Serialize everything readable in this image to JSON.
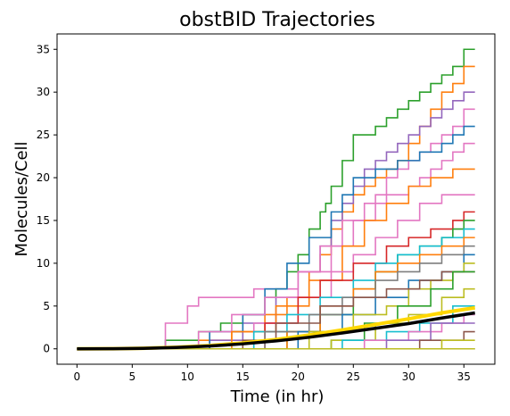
{
  "chart_data": {
    "type": "line",
    "title": "obstBID Trajectories",
    "xlabel": "Time (in hr)",
    "ylabel": "Molecules/Cell",
    "xlim": [
      -1.8,
      37.8
    ],
    "ylim": [
      -1.8,
      36.8
    ],
    "xticks": [
      0,
      5,
      10,
      15,
      20,
      25,
      30,
      35
    ],
    "yticks": [
      0,
      5,
      10,
      15,
      20,
      25,
      30,
      35
    ],
    "grid": false,
    "legend": "none",
    "series": [
      {
        "color": "#2ca02c",
        "style": "step",
        "x": [
          0,
          5,
          8,
          11,
          13,
          15,
          17,
          18,
          19,
          20,
          21,
          22,
          22.5,
          23,
          24,
          25,
          26,
          27,
          28,
          29,
          30,
          31,
          32,
          33,
          34,
          35,
          36
        ],
        "y": [
          0,
          0,
          1,
          2,
          3,
          4,
          6,
          7,
          9,
          11,
          14,
          16,
          17,
          19,
          22,
          25,
          25,
          26,
          27,
          28,
          29,
          30,
          31,
          32,
          33,
          35,
          35
        ]
      },
      {
        "color": "#ff7f0e",
        "style": "step",
        "x": [
          0,
          7,
          11,
          14,
          17,
          19,
          21,
          22,
          23,
          24,
          25,
          26,
          27,
          28,
          29,
          30,
          31,
          32,
          33,
          34,
          35,
          36
        ],
        "y": [
          0,
          0,
          1,
          2,
          4,
          6,
          9,
          11,
          14,
          16,
          18,
          19,
          20,
          21,
          22,
          24,
          26,
          28,
          30,
          31,
          33,
          33
        ]
      },
      {
        "color": "#9467bd",
        "style": "step",
        "x": [
          0,
          8,
          12,
          15,
          18,
          20,
          22,
          23,
          24,
          25,
          26,
          27,
          28,
          29,
          30,
          31,
          32,
          33,
          34,
          35,
          36
        ],
        "y": [
          0,
          0,
          1,
          3,
          6,
          9,
          12,
          15,
          17,
          19,
          21,
          22,
          23,
          24,
          25,
          26,
          27,
          28,
          29,
          30,
          30
        ]
      },
      {
        "color": "#e377c2",
        "style": "step",
        "x": [
          0,
          5,
          8,
          10,
          11,
          16,
          20,
          23,
          25,
          27,
          28,
          29,
          30,
          31,
          32,
          33,
          34,
          35,
          36
        ],
        "y": [
          0,
          0,
          3,
          5,
          6,
          7,
          9,
          12,
          15,
          18,
          20,
          21,
          22,
          23,
          24,
          25,
          26,
          28,
          28
        ]
      },
      {
        "color": "#1f77b4",
        "style": "step",
        "x": [
          0,
          9,
          12,
          15,
          17,
          19,
          21,
          23,
          24,
          25,
          27,
          29,
          31,
          33,
          34,
          35,
          36
        ],
        "y": [
          0,
          0,
          2,
          4,
          7,
          10,
          13,
          16,
          18,
          20,
          21,
          22,
          23,
          24,
          25,
          26,
          26
        ]
      },
      {
        "color": "#e377c2",
        "style": "step",
        "x": [
          0,
          8,
          11,
          14,
          17,
          20,
          22,
          24,
          26,
          28,
          30,
          31,
          32,
          33,
          34,
          35,
          36
        ],
        "y": [
          0,
          0,
          2,
          4,
          6,
          9,
          12,
          15,
          17,
          18,
          19,
          20,
          21,
          22,
          23,
          24,
          24
        ]
      },
      {
        "color": "#ff7f0e",
        "style": "step",
        "x": [
          0,
          10,
          14,
          18,
          21,
          24,
          26,
          28,
          30,
          32,
          34,
          36
        ],
        "y": [
          0,
          0,
          2,
          5,
          8,
          12,
          15,
          17,
          19,
          20,
          21,
          21
        ]
      },
      {
        "color": "#e377c2",
        "style": "step",
        "x": [
          0,
          11,
          16,
          20,
          23,
          25,
          27,
          29,
          31,
          33,
          35,
          36
        ],
        "y": [
          0,
          0,
          3,
          6,
          9,
          11,
          13,
          15,
          17,
          18,
          18,
          18
        ]
      },
      {
        "color": "#d62728",
        "style": "step",
        "x": [
          0,
          12,
          17,
          20,
          22,
          25,
          28,
          30,
          32,
          34,
          35,
          36
        ],
        "y": [
          0,
          0,
          3,
          6,
          8,
          10,
          12,
          13,
          14,
          15,
          16,
          16
        ]
      },
      {
        "color": "#2ca02c",
        "style": "step",
        "x": [
          0,
          14,
          19,
          22,
          25,
          27,
          29,
          31,
          33,
          34,
          35,
          36
        ],
        "y": [
          0,
          0,
          2,
          4,
          7,
          9,
          11,
          12,
          13,
          14,
          15,
          15
        ]
      },
      {
        "color": "#17becf",
        "style": "step",
        "x": [
          0,
          12,
          16,
          19,
          22,
          25,
          27,
          29,
          31,
          33,
          35,
          36
        ],
        "y": [
          0,
          0,
          2,
          4,
          6,
          8,
          10,
          11,
          12,
          13,
          14,
          14
        ]
      },
      {
        "color": "#ff7f0e",
        "style": "step",
        "x": [
          0,
          15,
          19,
          22,
          25,
          27,
          29,
          31,
          33,
          35,
          36
        ],
        "y": [
          0,
          0,
          2,
          5,
          7,
          9,
          10,
          11,
          12,
          13,
          13
        ]
      },
      {
        "color": "#7f7f7f",
        "style": "step",
        "x": [
          0,
          13,
          17,
          21,
          24,
          27,
          29,
          31,
          33,
          35,
          36
        ],
        "y": [
          0,
          0,
          2,
          4,
          6,
          8,
          9,
          10,
          11,
          12,
          12
        ]
      },
      {
        "color": "#1f77b4",
        "style": "step",
        "x": [
          0,
          16,
          20,
          24,
          27,
          30,
          33,
          35,
          36
        ],
        "y": [
          0,
          0,
          2,
          4,
          6,
          8,
          9,
          11,
          11
        ]
      },
      {
        "color": "#bcbd22",
        "style": "step",
        "x": [
          0,
          17,
          21,
          25,
          28,
          30,
          32,
          34,
          35,
          36
        ],
        "y": [
          0,
          0,
          2,
          4,
          5,
          7,
          8,
          9,
          10,
          10
        ]
      },
      {
        "color": "#8c564b",
        "style": "step",
        "x": [
          0,
          11,
          15,
          18,
          22,
          25,
          28,
          31,
          33,
          36
        ],
        "y": [
          0,
          0,
          1,
          3,
          5,
          6,
          7,
          8,
          9,
          9
        ]
      },
      {
        "color": "#2ca02c",
        "style": "step",
        "x": [
          0,
          18,
          23,
          26,
          29,
          32,
          34,
          36
        ],
        "y": [
          0,
          0,
          1,
          3,
          5,
          7,
          9,
          9
        ]
      },
      {
        "color": "#bcbd22",
        "style": "step",
        "x": [
          0,
          19,
          23,
          27,
          30,
          33,
          35,
          36
        ],
        "y": [
          0,
          0,
          1,
          3,
          4,
          6,
          7,
          7
        ]
      },
      {
        "color": "#17becf",
        "style": "step",
        "x": [
          0,
          20,
          24,
          28,
          31,
          34,
          36
        ],
        "y": [
          0,
          0,
          1,
          2,
          3,
          5,
          5
        ]
      },
      {
        "color": "#e377c2",
        "style": "step",
        "x": [
          0,
          22,
          26,
          30,
          33,
          35,
          36
        ],
        "y": [
          0,
          0,
          1,
          2,
          3,
          4,
          4
        ]
      },
      {
        "color": "#9467bd",
        "style": "step",
        "x": [
          0,
          23,
          28,
          32,
          36
        ],
        "y": [
          0,
          0,
          1,
          3,
          3
        ]
      },
      {
        "color": "#8c564b",
        "style": "step",
        "x": [
          0,
          26,
          31,
          35,
          36
        ],
        "y": [
          0,
          0,
          1,
          2,
          2
        ]
      },
      {
        "color": "#bcbd22",
        "style": "step",
        "x": [
          0,
          28,
          33,
          36
        ],
        "y": [
          0,
          0,
          1,
          1
        ]
      },
      {
        "color": "#7f7f7f",
        "style": "step",
        "x": [
          0,
          36
        ],
        "y": [
          0,
          0
        ]
      },
      {
        "color": "#bcbd22",
        "style": "step",
        "x": [
          0,
          36
        ],
        "y": [
          0,
          0
        ]
      },
      {
        "color": "#ffd700",
        "style": "line",
        "width": 4,
        "x": [
          0,
          3,
          6,
          9,
          12,
          15,
          18,
          21,
          24,
          27,
          30,
          33,
          36
        ],
        "y": [
          0,
          0.01,
          0.06,
          0.18,
          0.38,
          0.68,
          1.08,
          1.6,
          2.2,
          2.85,
          3.5,
          4.2,
          4.8
        ]
      },
      {
        "color": "#000000",
        "style": "line",
        "width": 3.5,
        "x": [
          0,
          3,
          6,
          9,
          12,
          15,
          18,
          21,
          24,
          27,
          30,
          33,
          36
        ],
        "y": [
          0,
          0.01,
          0.05,
          0.15,
          0.32,
          0.58,
          0.92,
          1.35,
          1.85,
          2.4,
          2.95,
          3.6,
          4.2
        ]
      }
    ]
  }
}
